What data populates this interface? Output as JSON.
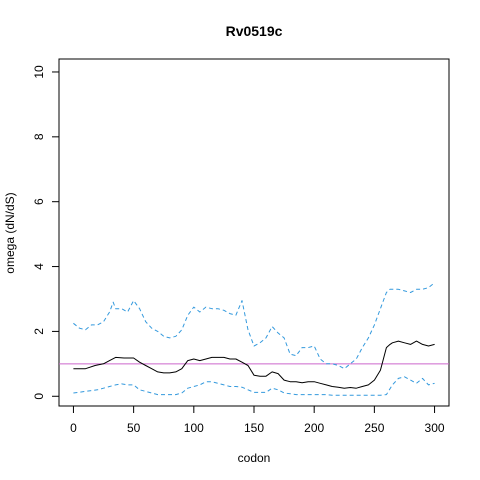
{
  "chart_data": {
    "type": "line",
    "title": "Rv0519c",
    "xlabel": "codon",
    "ylabel": "omega (dN/dS)",
    "xlim": [
      -12,
      312
    ],
    "ylim": [
      -0.3,
      10.4
    ],
    "x_ticks": [
      0,
      50,
      100,
      150,
      200,
      250,
      300
    ],
    "y_ticks": [
      0,
      2,
      4,
      6,
      8,
      10
    ],
    "reference_line": {
      "y": 1,
      "color": "#cc66cc"
    },
    "series": [
      {
        "style": "solid",
        "color": "#000000",
        "x": [
          0,
          10,
          18,
          25,
          30,
          35,
          42,
          50,
          55,
          60,
          65,
          70,
          75,
          80,
          85,
          90,
          95,
          100,
          105,
          110,
          115,
          120,
          125,
          130,
          135,
          140,
          145,
          150,
          155,
          160,
          165,
          170,
          175,
          180,
          185,
          190,
          195,
          200,
          205,
          210,
          215,
          220,
          225,
          230,
          235,
          240,
          245,
          250,
          255,
          260,
          263,
          265,
          270,
          275,
          280,
          285,
          290,
          295,
          300
        ],
        "values": [
          0.85,
          0.85,
          0.95,
          1.0,
          1.1,
          1.2,
          1.18,
          1.18,
          1.05,
          0.95,
          0.85,
          0.75,
          0.72,
          0.72,
          0.75,
          0.85,
          1.1,
          1.15,
          1.1,
          1.15,
          1.2,
          1.2,
          1.2,
          1.15,
          1.15,
          1.05,
          0.95,
          0.65,
          0.62,
          0.62,
          0.75,
          0.7,
          0.5,
          0.45,
          0.45,
          0.42,
          0.45,
          0.45,
          0.4,
          0.35,
          0.3,
          0.28,
          0.25,
          0.27,
          0.25,
          0.3,
          0.35,
          0.5,
          0.8,
          1.5,
          1.6,
          1.65,
          1.7,
          1.65,
          1.6,
          1.7,
          1.6,
          1.55,
          1.6
        ]
      },
      {
        "style": "dashed",
        "color": "#3399dd",
        "x": [
          0,
          5,
          10,
          15,
          20,
          25,
          30,
          33,
          35,
          40,
          45,
          50,
          55,
          60,
          65,
          70,
          75,
          80,
          85,
          90,
          95,
          100,
          105,
          110,
          115,
          120,
          125,
          130,
          135,
          140,
          145,
          150,
          155,
          160,
          165,
          170,
          175,
          180,
          185,
          190,
          195,
          200,
          205,
          210,
          215,
          220,
          225,
          230,
          235,
          240,
          245,
          250,
          255,
          260,
          263,
          265,
          270,
          275,
          280,
          285,
          290,
          295,
          300
        ],
        "values": [
          2.25,
          2.1,
          2.05,
          2.2,
          2.2,
          2.3,
          2.6,
          2.9,
          2.7,
          2.7,
          2.6,
          2.95,
          2.7,
          2.3,
          2.1,
          2.0,
          1.85,
          1.8,
          1.85,
          2.05,
          2.5,
          2.75,
          2.6,
          2.75,
          2.7,
          2.7,
          2.65,
          2.55,
          2.5,
          2.95,
          2.05,
          1.55,
          1.65,
          1.8,
          2.15,
          1.95,
          1.8,
          1.3,
          1.25,
          1.5,
          1.5,
          1.55,
          1.15,
          1.0,
          1.0,
          0.95,
          0.85,
          1.0,
          1.15,
          1.5,
          1.8,
          2.2,
          2.7,
          3.2,
          3.3,
          3.3,
          3.3,
          3.25,
          3.2,
          3.3,
          3.3,
          3.35,
          3.5
        ]
      },
      {
        "style": "dashed",
        "color": "#3399dd",
        "x": [
          0,
          10,
          20,
          25,
          30,
          35,
          40,
          45,
          50,
          55,
          60,
          65,
          70,
          75,
          80,
          85,
          90,
          95,
          100,
          105,
          110,
          115,
          120,
          125,
          130,
          135,
          140,
          145,
          150,
          155,
          160,
          165,
          170,
          175,
          180,
          185,
          190,
          195,
          200,
          205,
          210,
          215,
          220,
          225,
          230,
          240,
          250,
          255,
          260,
          265,
          270,
          275,
          280,
          285,
          290,
          295,
          300
        ],
        "values": [
          0.1,
          0.15,
          0.2,
          0.25,
          0.3,
          0.35,
          0.38,
          0.35,
          0.35,
          0.2,
          0.15,
          0.1,
          0.05,
          0.05,
          0.05,
          0.05,
          0.1,
          0.25,
          0.3,
          0.35,
          0.45,
          0.45,
          0.4,
          0.35,
          0.3,
          0.3,
          0.28,
          0.2,
          0.12,
          0.12,
          0.12,
          0.25,
          0.2,
          0.1,
          0.08,
          0.05,
          0.05,
          0.05,
          0.05,
          0.05,
          0.05,
          0.03,
          0.03,
          0.03,
          0.03,
          0.03,
          0.03,
          0.03,
          0.05,
          0.35,
          0.55,
          0.6,
          0.5,
          0.4,
          0.55,
          0.35,
          0.4
        ]
      }
    ]
  }
}
